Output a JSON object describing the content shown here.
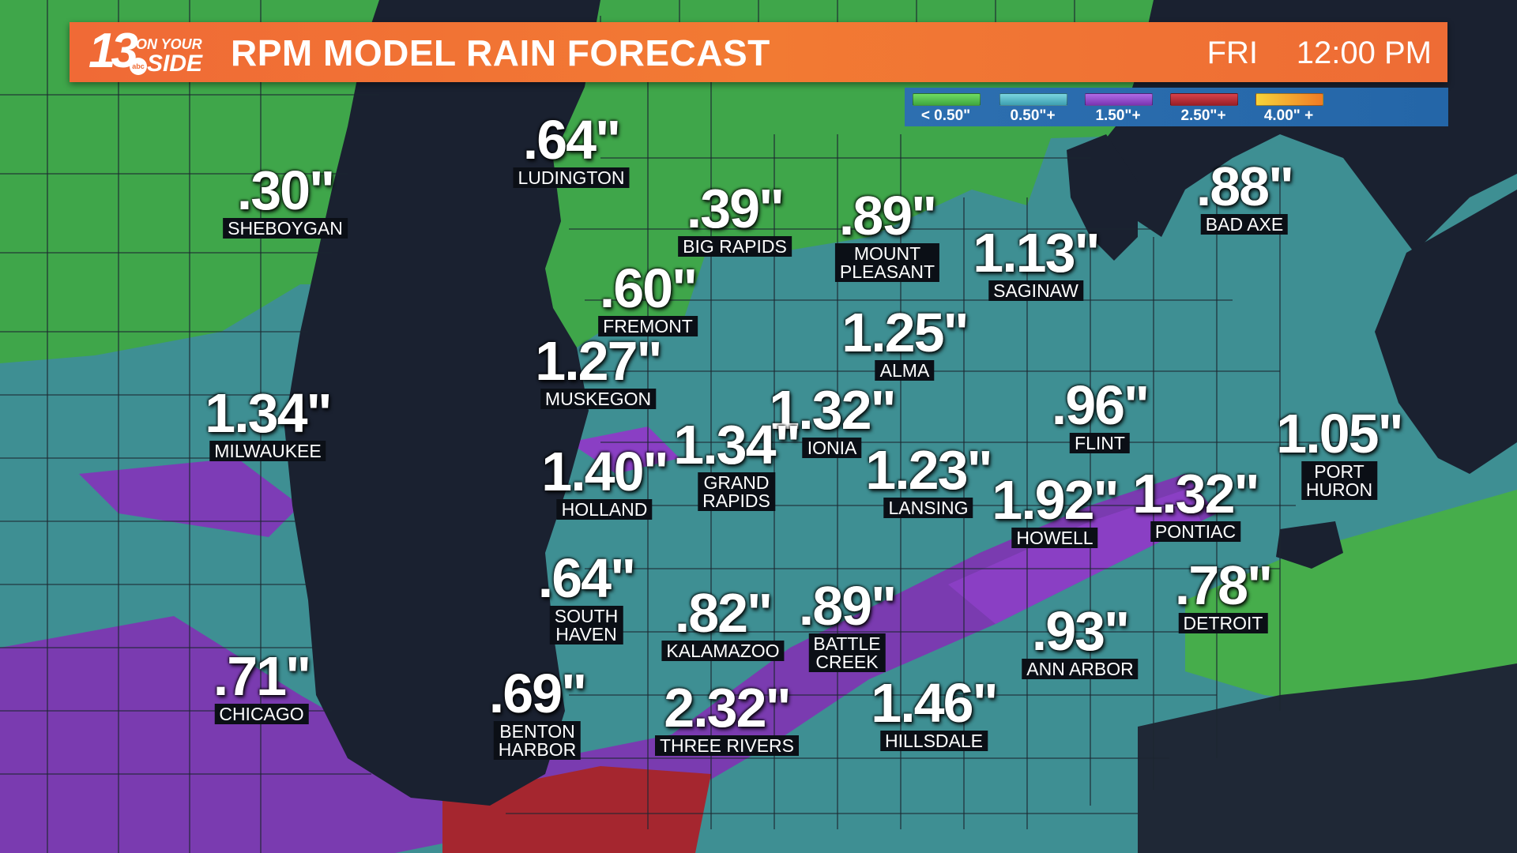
{
  "header": {
    "logo_number": "13",
    "logo_tagline_top": "ON YOUR",
    "logo_tagline_bottom": "SIDE",
    "logo_network": "abc",
    "title": "RPM MODEL RAIN FORECAST",
    "day": "FRI",
    "time": "12:00 PM",
    "bar_color": "#f07436"
  },
  "legend": [
    {
      "label": "< 0.50\"",
      "color": "#55c94a"
    },
    {
      "label": "0.50\"+",
      "color": "#4fb8c4"
    },
    {
      "label": "1.50\"+",
      "color": "#8a3fc4"
    },
    {
      "label": "2.50\"+",
      "color": "#b8272f"
    },
    {
      "label": "4.00\" +",
      "color": "#f2a21e"
    }
  ],
  "cities": [
    {
      "name": "LUDINGTON",
      "value": ".64\""
    },
    {
      "name": "SHEBOYGAN",
      "value": ".30\""
    },
    {
      "name": "BIG RAPIDS",
      "value": ".39\""
    },
    {
      "name": "MOUNT\nPLEASANT",
      "value": ".89\""
    },
    {
      "name": "BAD AXE",
      "value": ".88\""
    },
    {
      "name": "SAGINAW",
      "value": "1.13\""
    },
    {
      "name": "FREMONT",
      "value": ".60\""
    },
    {
      "name": "ALMA",
      "value": "1.25\""
    },
    {
      "name": "MUSKEGON",
      "value": "1.27\""
    },
    {
      "name": "MILWAUKEE",
      "value": "1.34\""
    },
    {
      "name": "IONIA",
      "value": "1.32\""
    },
    {
      "name": "FLINT",
      "value": ".96\""
    },
    {
      "name": "PORT\nHURON",
      "value": "1.05\""
    },
    {
      "name": "GRAND\nRAPIDS",
      "value": "1.34\""
    },
    {
      "name": "HOLLAND",
      "value": "1.40\""
    },
    {
      "name": "LANSING",
      "value": "1.23\""
    },
    {
      "name": "HOWELL",
      "value": "1.92\""
    },
    {
      "name": "PONTIAC",
      "value": "1.32\""
    },
    {
      "name": "SOUTH\nHAVEN",
      "value": ".64\""
    },
    {
      "name": "DETROIT",
      "value": ".78\""
    },
    {
      "name": "KALAMAZOO",
      "value": ".82\""
    },
    {
      "name": "BATTLE\nCREEK",
      "value": ".89\""
    },
    {
      "name": "ANN ARBOR",
      "value": ".93\""
    },
    {
      "name": "CHICAGO",
      "value": ".71\""
    },
    {
      "name": "BENTON\nHARBOR",
      "value": ".69\""
    },
    {
      "name": "THREE RIVERS",
      "value": "2.32\""
    },
    {
      "name": "HILLSDALE",
      "value": "1.46\""
    }
  ]
}
